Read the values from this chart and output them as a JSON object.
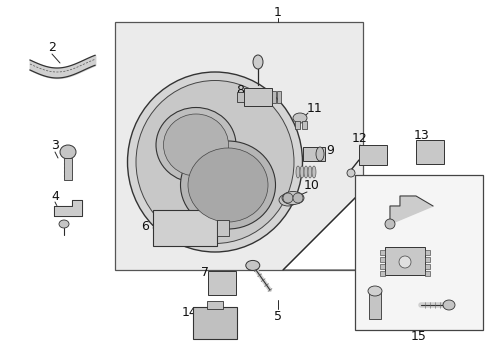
{
  "bg_color": "#ffffff",
  "main_box_color": "#e8e8e8",
  "sub_box_color": "#f5f5f5",
  "line_color": "#2a2a2a",
  "text_color": "#111111",
  "leader_color": "#333333"
}
